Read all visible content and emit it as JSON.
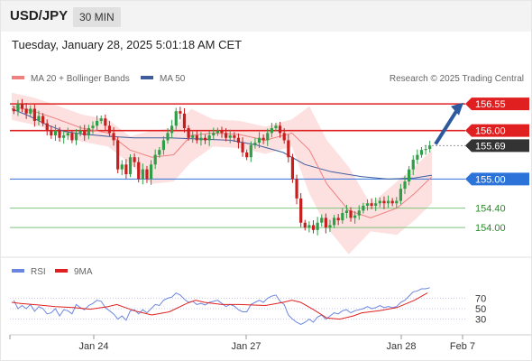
{
  "header": {
    "symbol": "USD/JPY",
    "interval": "30 MIN"
  },
  "timestamp": "Tuesday, January 28, 2025 5:01:18 AM CET",
  "legend": {
    "ma20": "MA 20 + Bollinger Bands",
    "ma50": "MA 50",
    "source": "Research © 2025 Trading Central",
    "rsi": "RSI",
    "rsi_ma": "9MA"
  },
  "colors": {
    "bull": "#2e9e47",
    "bear": "#c81e1e",
    "resistance": "#e02020",
    "support": "#2b73d9",
    "target": "#7cc47c",
    "ma50": "#3f5d9c",
    "ma20": "#f08080",
    "band": "#fde0e0",
    "arrow": "#2d5a9e",
    "price_label": "#333333"
  },
  "chart_data": [
    {
      "type": "line",
      "title": "USD/JPY",
      "ylim": [
        153.5,
        156.85
      ],
      "x_tick_labels": [
        "Jan 24",
        "Jan 27",
        "Jan 28",
        "Feb 7"
      ],
      "levels": [
        {
          "value": 156.55,
          "label": "156.55",
          "kind": "resistance"
        },
        {
          "value": 156.0,
          "label": "156.00",
          "kind": "resistance"
        },
        {
          "value": 155.69,
          "label": "155.69",
          "kind": "last"
        },
        {
          "value": 155.0,
          "label": "155.00",
          "kind": "pivot"
        },
        {
          "value": 154.4,
          "label": "154.40",
          "kind": "support"
        },
        {
          "value": 154.0,
          "label": "154.00",
          "kind": "support"
        }
      ],
      "series": [
        {
          "name": "USD/JPY",
          "close": [
            156.4,
            156.55,
            156.45,
            156.35,
            156.45,
            156.2,
            156.3,
            156.15,
            156.0,
            155.9,
            156.0,
            155.85,
            155.9,
            155.95,
            155.8,
            155.95,
            156.0,
            155.9,
            156.05,
            156.1,
            156.2,
            156.25,
            156.1,
            155.95,
            155.8,
            155.2,
            155.3,
            155.1,
            155.45,
            155.35,
            155.0,
            155.2,
            155.0,
            155.3,
            155.5,
            155.6,
            155.8,
            155.95,
            156.1,
            156.4,
            156.35,
            156.05,
            155.85,
            155.9,
            155.8,
            155.85,
            155.8,
            155.9,
            155.95,
            156.0,
            155.95,
            155.85,
            155.9,
            155.85,
            155.75,
            155.55,
            155.45,
            155.7,
            155.75,
            155.85,
            155.8,
            155.95,
            156.05,
            156.1,
            155.95,
            155.8,
            155.45,
            155.0,
            154.6,
            154.1,
            154.0,
            154.05,
            153.95,
            154.1,
            154.2,
            154.0,
            154.05,
            154.2,
            154.15,
            154.3,
            154.35,
            154.2,
            154.25,
            154.35,
            154.45,
            154.5,
            154.45,
            154.5,
            154.55,
            154.5,
            154.55,
            154.5,
            154.55,
            154.8,
            154.95,
            155.2,
            155.4,
            155.5,
            155.6,
            155.62,
            155.69
          ]
        },
        {
          "name": "MA 50",
          "values": [
            [
              0,
              156.45
            ],
            [
              20,
              156.3
            ],
            [
              40,
              156.12
            ],
            [
              60,
              155.98
            ],
            [
              80,
              155.93
            ],
            [
              110,
              155.88
            ],
            [
              140,
              155.85
            ],
            [
              180,
              155.85
            ],
            [
              220,
              155.82
            ],
            [
              250,
              155.8
            ],
            [
              280,
              155.7
            ],
            [
              310,
              155.55
            ],
            [
              335,
              155.3
            ],
            [
              365,
              155.15
            ],
            [
              400,
              155.05
            ],
            [
              430,
              155.0
            ],
            [
              460,
              155.02
            ],
            [
              480,
              155.08
            ]
          ]
        },
        {
          "name": "MA 20",
          "values": [
            [
              0,
              156.5
            ],
            [
              25,
              156.4
            ],
            [
              50,
              156.25
            ],
            [
              80,
              156.05
            ],
            [
              110,
              155.95
            ],
            [
              135,
              155.6
            ],
            [
              160,
              155.45
            ],
            [
              185,
              155.5
            ],
            [
              205,
              155.9
            ],
            [
              230,
              155.95
            ],
            [
              260,
              155.92
            ],
            [
              290,
              155.8
            ],
            [
              320,
              155.95
            ],
            [
              340,
              155.6
            ],
            [
              360,
              154.9
            ],
            [
              385,
              154.35
            ],
            [
              410,
              154.2
            ],
            [
              440,
              154.4
            ],
            [
              460,
              154.7
            ],
            [
              480,
              155.05
            ]
          ]
        }
      ]
    },
    {
      "type": "line",
      "title": "RSI",
      "ylim": [
        0,
        100
      ],
      "y_tick_labels": [
        "70",
        "50",
        "30"
      ],
      "series": [
        {
          "name": "RSI",
          "values": [
            66,
            50,
            56,
            50,
            58,
            45,
            54,
            50,
            40,
            42,
            50,
            36,
            48,
            46,
            40,
            58,
            52,
            48,
            56,
            60,
            66,
            64,
            52,
            46,
            40,
            30,
            36,
            28,
            46,
            48,
            40,
            48,
            42,
            50,
            58,
            56,
            66,
            70,
            72,
            80,
            76,
            68,
            62,
            64,
            58,
            60,
            57,
            62,
            64,
            66,
            60,
            54,
            58,
            55,
            48,
            44,
            44,
            58,
            62,
            66,
            62,
            70,
            74,
            76,
            64,
            58,
            38,
            30,
            24,
            20,
            24,
            30,
            24,
            34,
            38,
            30,
            36,
            42,
            40,
            46,
            48,
            42,
            46,
            48,
            50,
            54,
            50,
            52,
            56,
            52,
            54,
            52,
            54,
            62,
            66,
            74,
            82,
            84,
            88,
            88,
            90
          ]
        },
        {
          "name": "9MA",
          "values": [
            [
              0,
              62
            ],
            [
              10,
              60
            ],
            [
              30,
              57
            ],
            [
              50,
              54
            ],
            [
              70,
              52
            ],
            [
              90,
              49
            ],
            [
              110,
              54
            ],
            [
              120,
              58
            ],
            [
              140,
              46
            ],
            [
              160,
              38
            ],
            [
              180,
              44
            ],
            [
              200,
              60
            ],
            [
              210,
              66
            ],
            [
              220,
              62
            ],
            [
              240,
              58
            ],
            [
              260,
              58
            ],
            [
              290,
              56
            ],
            [
              310,
              62
            ],
            [
              320,
              66
            ],
            [
              330,
              62
            ],
            [
              345,
              48
            ],
            [
              360,
              32
            ],
            [
              375,
              30
            ],
            [
              390,
              36
            ],
            [
              400,
              42
            ],
            [
              420,
              46
            ],
            [
              440,
              52
            ],
            [
              460,
              66
            ],
            [
              475,
              80
            ]
          ]
        }
      ]
    }
  ]
}
